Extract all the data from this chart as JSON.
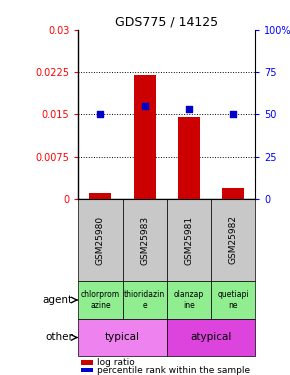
{
  "title": "GDS775 / 14125",
  "samples": [
    "GSM25980",
    "GSM25983",
    "GSM25981",
    "GSM25982"
  ],
  "log_ratio": [
    0.001,
    0.022,
    0.0145,
    0.002
  ],
  "percentile": [
    0.5,
    0.55,
    0.53,
    0.5
  ],
  "left_ylim": [
    0,
    0.03
  ],
  "right_ylim": [
    0,
    1.0
  ],
  "left_yticks": [
    0,
    0.0075,
    0.015,
    0.0225,
    0.03
  ],
  "left_yticklabels": [
    "0",
    "0.0075",
    "0.015",
    "0.0225",
    "0.03"
  ],
  "right_yticks": [
    0,
    0.25,
    0.5,
    0.75,
    1.0
  ],
  "right_yticklabels": [
    "0",
    "25",
    "50",
    "75",
    "100%"
  ],
  "bar_color": "#cc0000",
  "marker_color": "#0000cc",
  "agent_labels": [
    "chlorprom\nazine",
    "thioridazin\ne",
    "olanzap\nine",
    "quetiapi\nne"
  ],
  "agent_bg": "#90ee90",
  "typical_bg": "#ee82ee",
  "atypical_bg": "#dd44dd",
  "xticklabel_bg": "#c8c8c8",
  "dotted_line_color": "#000000",
  "legend_red_label": "log ratio",
  "legend_blue_label": "percentile rank within the sample",
  "agent_row_label": "agent",
  "other_row_label": "other",
  "typical_label": "typical",
  "atypical_label": "atypical",
  "bar_width": 0.5
}
